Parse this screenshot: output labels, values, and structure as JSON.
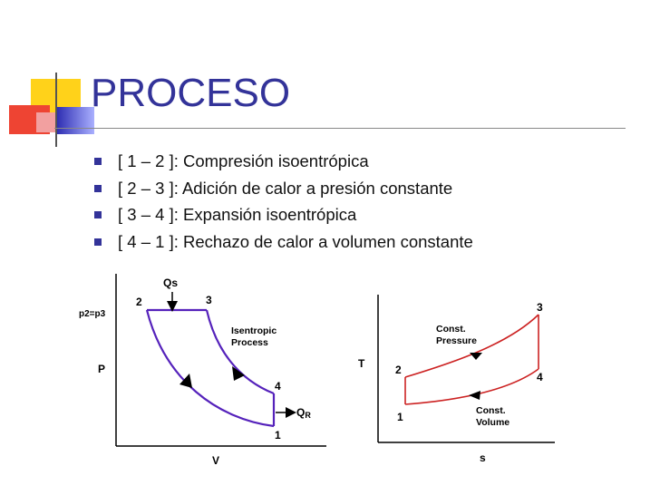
{
  "slide": {
    "title": "PROCESO",
    "colors": {
      "title": "#333399",
      "bullet": "#333399",
      "pv_curve": "#5522bb",
      "ts_curve": "#cc2222"
    },
    "bullets": [
      "[ 1 – 2 ]: Compresión isoentrópica",
      "[ 2 – 3 ]: Adición de calor a presión constante",
      "[ 3 – 4 ]: Expansión isoentrópica",
      "[ 4 – 1 ]: Rechazo de calor a volumen constante"
    ]
  },
  "pv_diagram": {
    "y_label": "P",
    "x_label": "V",
    "pressure_note": "p2=p3",
    "heat_in": "Qs",
    "heat_out": "Q",
    "heat_out_sub": "R",
    "annotation_line1": "Isentropic",
    "annotation_line2": "Process",
    "points": [
      "1",
      "2",
      "3",
      "4"
    ]
  },
  "ts_diagram": {
    "y_label": "T",
    "x_label": "s",
    "pressure_line1": "Const.",
    "pressure_line2": "Pressure",
    "volume_line1": "Const.",
    "volume_line2": "Volume",
    "points": [
      "1",
      "2",
      "3",
      "4"
    ]
  }
}
